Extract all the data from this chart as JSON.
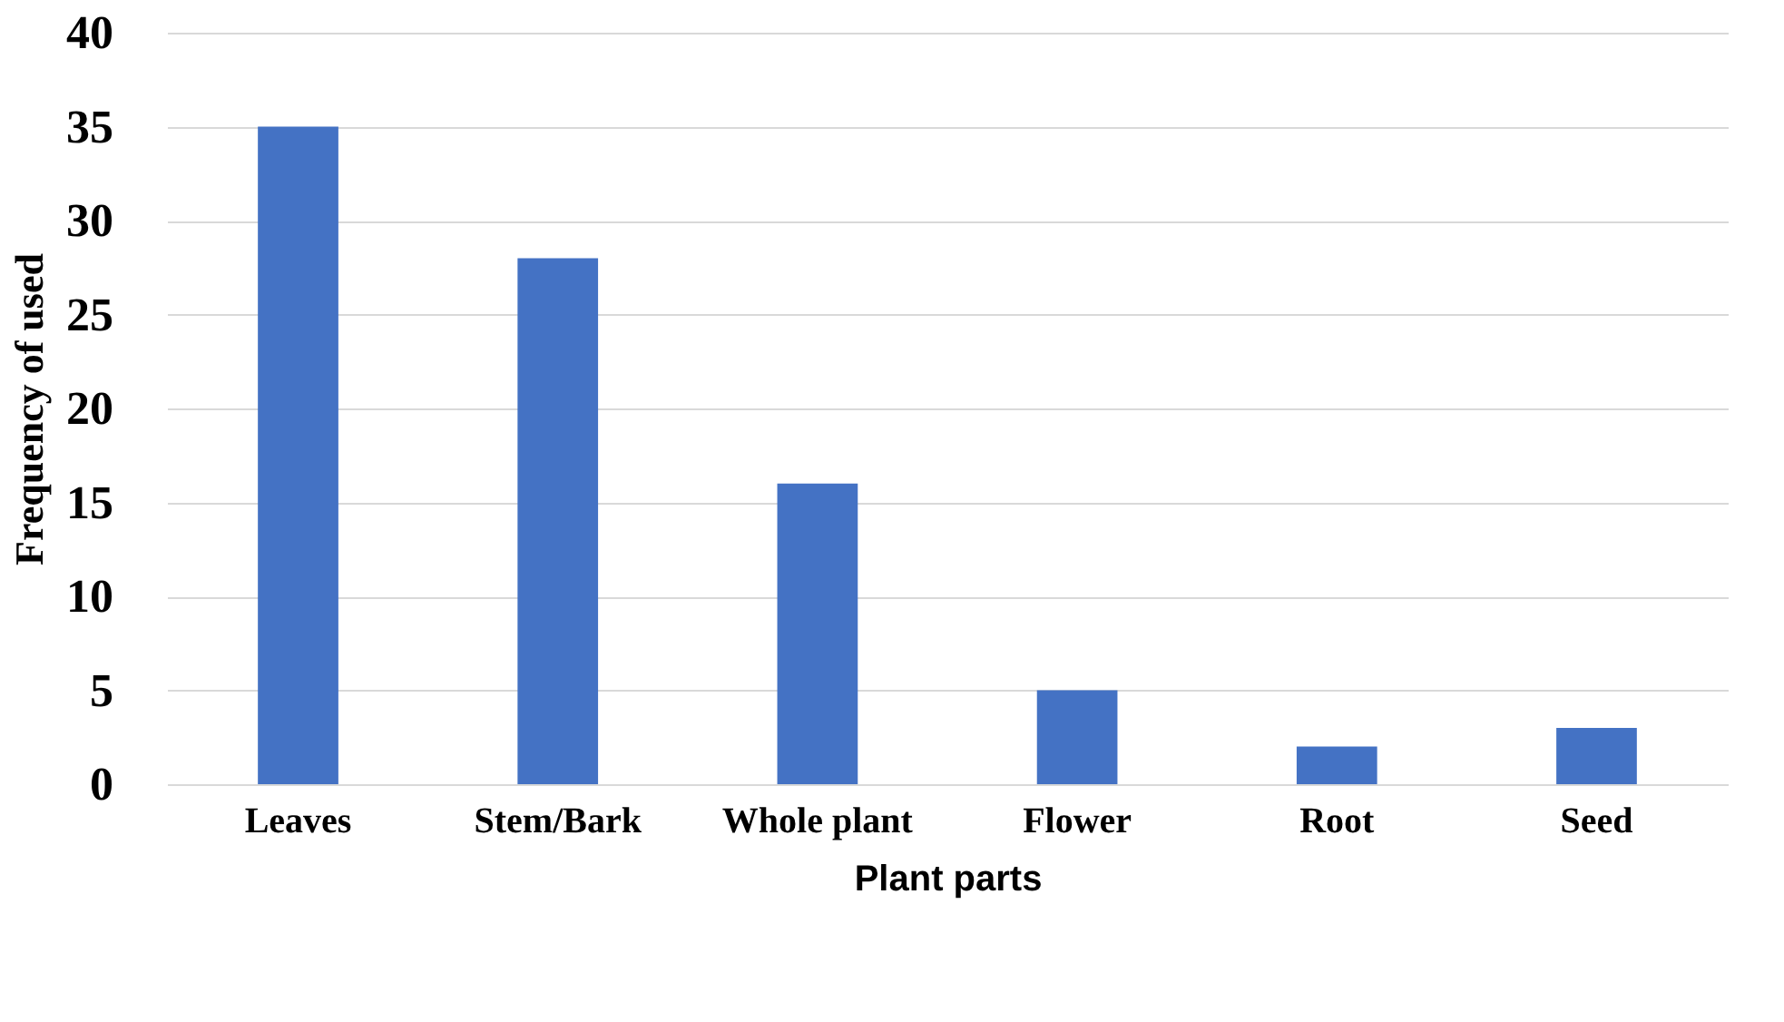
{
  "chart_data": {
    "type": "bar",
    "xlabel": "Plant parts",
    "ylabel": "Frequency of used",
    "categories": [
      "Leaves",
      "Stem/Bark",
      "Whole plant",
      "Flower",
      "Root",
      "Seed"
    ],
    "values": [
      35,
      28,
      16,
      5,
      2,
      3
    ],
    "color": "#4472c4",
    "ylim": [
      0,
      40
    ],
    "yticks": [
      0,
      5,
      10,
      15,
      20,
      25,
      30,
      35,
      40
    ],
    "grid": "y"
  }
}
